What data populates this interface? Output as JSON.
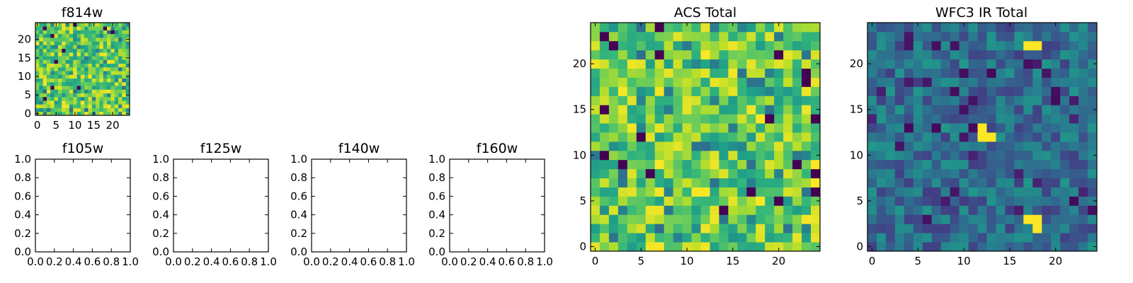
{
  "chart_data": [
    {
      "id": "f814w",
      "type": "heatmap",
      "title": "f814w",
      "grid_size": 25,
      "xticks": [
        0,
        5,
        10,
        15,
        20
      ],
      "yticks": [
        0,
        5,
        10,
        15,
        20
      ],
      "xlim": [
        -0.5,
        24.5
      ],
      "ylim": [
        -0.5,
        24.5
      ],
      "colormap": "viridis",
      "value_range": [
        0,
        1
      ],
      "values_description": "25x25 noise image, mostly mid-to-high (green/yellow) with a few dark outlier pixels"
    },
    {
      "id": "f105w",
      "type": "empty",
      "title": "f105w",
      "xticks": [
        "0.0",
        "0.2",
        "0.4",
        "0.6",
        "0.8",
        "1.0"
      ],
      "yticks": [
        "0.0",
        "0.2",
        "0.4",
        "0.6",
        "0.8",
        "1.0"
      ],
      "xlim": [
        0,
        1
      ],
      "ylim": [
        0,
        1
      ]
    },
    {
      "id": "f125w",
      "type": "empty",
      "title": "f125w",
      "xticks": [
        "0.0",
        "0.2",
        "0.4",
        "0.6",
        "0.8",
        "1.0"
      ],
      "yticks": [
        "0.0",
        "0.2",
        "0.4",
        "0.6",
        "0.8",
        "1.0"
      ],
      "xlim": [
        0,
        1
      ],
      "ylim": [
        0,
        1
      ]
    },
    {
      "id": "f140w",
      "type": "empty",
      "title": "f140w",
      "xticks": [
        "0.0",
        "0.2",
        "0.4",
        "0.6",
        "0.8",
        "1.0"
      ],
      "yticks": [
        "0.0",
        "0.2",
        "0.4",
        "0.6",
        "0.8",
        "1.0"
      ],
      "xlim": [
        0,
        1
      ],
      "ylim": [
        0,
        1
      ]
    },
    {
      "id": "f160w",
      "type": "empty",
      "title": "f160w",
      "xticks": [
        "0.0",
        "0.2",
        "0.4",
        "0.6",
        "0.8",
        "1.0"
      ],
      "yticks": [
        "0.0",
        "0.2",
        "0.4",
        "0.6",
        "0.8",
        "1.0"
      ],
      "xlim": [
        0,
        1
      ],
      "ylim": [
        0,
        1
      ]
    },
    {
      "id": "acs_total",
      "type": "heatmap",
      "title": "ACS Total",
      "grid_size": 25,
      "xticks": [
        0,
        5,
        10,
        15,
        20
      ],
      "yticks": [
        0,
        5,
        10,
        15,
        20
      ],
      "xlim": [
        -0.5,
        24.5
      ],
      "ylim": [
        -0.5,
        24.5
      ],
      "colormap": "viridis",
      "value_range": [
        0,
        1
      ],
      "values_description": "25x25 noise image, mostly green/yellow with scattered dark pixels"
    },
    {
      "id": "wfc3_ir_total",
      "type": "heatmap",
      "title": "WFC3 IR Total",
      "grid_size": 25,
      "xticks": [
        0,
        5,
        10,
        15,
        20
      ],
      "yticks": [
        0,
        5,
        10,
        15,
        20
      ],
      "xlim": [
        -0.5,
        24.5
      ],
      "ylim": [
        -0.5,
        24.5
      ],
      "colormap": "viridis",
      "value_range": [
        0,
        1
      ],
      "values_description": "25x25 noise image, mostly dark blue/teal background with bright yellow sources",
      "bright_sources": [
        {
          "x": 17,
          "y": 22,
          "value": 1.0
        },
        {
          "x": 18,
          "y": 22,
          "value": 1.0
        },
        {
          "x": 12,
          "y": 13,
          "value": 1.0
        },
        {
          "x": 12,
          "y": 12,
          "value": 1.0
        },
        {
          "x": 13,
          "y": 12,
          "value": 1.0
        },
        {
          "x": 17,
          "y": 3,
          "value": 1.0
        },
        {
          "x": 18,
          "y": 3,
          "value": 1.0
        },
        {
          "x": 18,
          "y": 2,
          "value": 1.0
        }
      ]
    }
  ]
}
